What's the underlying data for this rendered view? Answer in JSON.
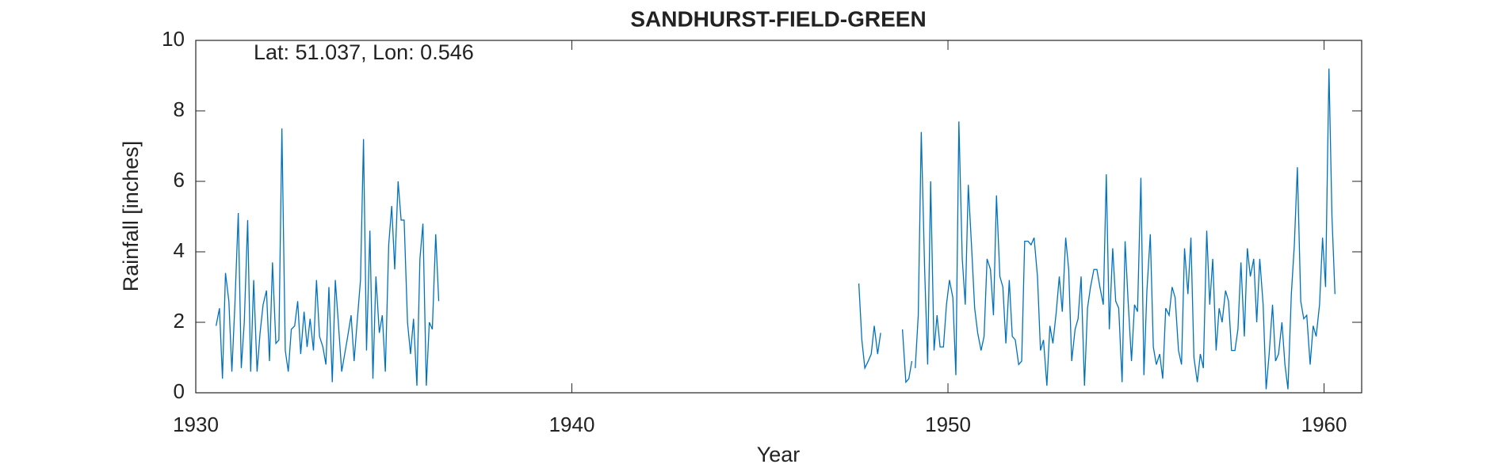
{
  "chart_data": {
    "type": "line",
    "title": "SANDHURST-FIELD-GREEN",
    "annotation": "Lat: 51.037, Lon: 0.546",
    "x_label": "Year",
    "y_label": "Rainfall [inches]",
    "color": "#0072BD",
    "xlim": [
      1930,
      1961
    ],
    "ylim": [
      0,
      10
    ],
    "xticks": [
      1930,
      1940,
      1950,
      1960
    ],
    "yticks": [
      0,
      2,
      4,
      6,
      8,
      10
    ],
    "grid": false,
    "x": [
      1930.54,
      1930.63,
      1930.71,
      1930.79,
      1930.88,
      1930.96,
      1931.04,
      1931.13,
      1931.21,
      1931.29,
      1931.38,
      1931.46,
      1931.54,
      1931.63,
      1931.71,
      1931.79,
      1931.88,
      1931.96,
      1932.04,
      1932.13,
      1932.21,
      1932.29,
      1932.38,
      1932.46,
      1932.54,
      1932.63,
      1932.71,
      1932.79,
      1932.88,
      1932.96,
      1933.04,
      1933.13,
      1933.21,
      1933.29,
      1933.38,
      1933.46,
      1933.54,
      1933.63,
      1933.71,
      1933.79,
      1933.88,
      1933.96,
      1934.04,
      1934.13,
      1934.21,
      1934.29,
      1934.38,
      1934.46,
      1934.54,
      1934.63,
      1934.71,
      1934.79,
      1934.88,
      1934.96,
      1935.04,
      1935.13,
      1935.21,
      1935.29,
      1935.38,
      1935.46,
      1935.54,
      1935.63,
      1935.71,
      1935.79,
      1935.88,
      1935.96,
      1936.04,
      1936.13,
      1936.21,
      1936.29,
      1936.38,
      1936.46,
      1942.0,
      1947.63,
      1947.71,
      1947.79,
      1947.88,
      1947.96,
      1948.04,
      1948.13,
      1948.21,
      1948.5,
      1948.79,
      1948.88,
      1948.96,
      1949.04,
      1949.08,
      1949.13,
      1949.21,
      1949.29,
      1949.38,
      1949.46,
      1949.54,
      1949.63,
      1949.71,
      1949.79,
      1949.88,
      1949.96,
      1950.04,
      1950.13,
      1950.21,
      1950.29,
      1950.38,
      1950.46,
      1950.54,
      1950.63,
      1950.71,
      1950.79,
      1950.88,
      1950.96,
      1951.04,
      1951.13,
      1951.21,
      1951.29,
      1951.38,
      1951.46,
      1951.54,
      1951.63,
      1951.71,
      1951.79,
      1951.88,
      1951.96,
      1952.04,
      1952.13,
      1952.21,
      1952.29,
      1952.38,
      1952.46,
      1952.54,
      1952.63,
      1952.71,
      1952.79,
      1952.88,
      1952.96,
      1953.04,
      1953.13,
      1953.21,
      1953.29,
      1953.38,
      1953.46,
      1953.54,
      1953.63,
      1953.71,
      1953.79,
      1953.88,
      1953.96,
      1954.04,
      1954.13,
      1954.21,
      1954.29,
      1954.38,
      1954.46,
      1954.54,
      1954.63,
      1954.71,
      1954.79,
      1954.88,
      1954.96,
      1955.04,
      1955.13,
      1955.21,
      1955.29,
      1955.38,
      1955.46,
      1955.54,
      1955.63,
      1955.71,
      1955.79,
      1955.88,
      1955.96,
      1956.04,
      1956.13,
      1956.21,
      1956.29,
      1956.38,
      1956.46,
      1956.54,
      1956.63,
      1956.71,
      1956.79,
      1956.88,
      1956.96,
      1957.04,
      1957.13,
      1957.21,
      1957.29,
      1957.38,
      1957.46,
      1957.54,
      1957.63,
      1957.71,
      1957.79,
      1957.88,
      1957.96,
      1958.04,
      1958.13,
      1958.21,
      1958.29,
      1958.38,
      1958.46,
      1958.54,
      1958.63,
      1958.71,
      1958.79,
      1958.88,
      1958.96,
      1959.04,
      1959.13,
      1959.21,
      1959.29,
      1959.38,
      1959.46,
      1959.54,
      1959.63,
      1959.71,
      1959.79,
      1959.88,
      1959.96,
      1960.04,
      1960.13,
      1960.21,
      1960.29
    ],
    "values": [
      1.9,
      2.4,
      0.4,
      3.4,
      2.6,
      0.6,
      2.5,
      5.1,
      0.7,
      2.0,
      4.9,
      0.6,
      3.2,
      0.6,
      1.7,
      2.5,
      2.9,
      0.9,
      3.7,
      1.4,
      1.5,
      7.5,
      1.2,
      0.6,
      1.8,
      1.9,
      2.6,
      1.1,
      2.3,
      1.3,
      2.1,
      1.2,
      3.2,
      1.6,
      1.3,
      0.8,
      3.0,
      0.3,
      3.2,
      2.0,
      0.6,
      1.1,
      1.6,
      2.2,
      0.9,
      2.0,
      3.2,
      7.2,
      1.2,
      4.6,
      0.4,
      3.3,
      1.7,
      2.2,
      0.6,
      4.2,
      5.3,
      3.5,
      6.0,
      4.9,
      4.9,
      2.0,
      1.1,
      2.1,
      0.2,
      3.8,
      4.8,
      0.2,
      2.0,
      1.8,
      4.5,
      2.6,
      null,
      3.1,
      1.5,
      0.7,
      0.9,
      1.1,
      1.9,
      1.1,
      1.7,
      null,
      1.8,
      0.3,
      0.4,
      0.9,
      null,
      0.7,
      2.2,
      7.4,
      3.5,
      0.8,
      6.0,
      1.2,
      2.2,
      1.3,
      1.3,
      2.5,
      3.2,
      2.7,
      0.5,
      7.7,
      3.8,
      2.5,
      5.9,
      4.1,
      2.4,
      1.7,
      1.2,
      1.6,
      3.8,
      3.5,
      2.2,
      5.6,
      3.3,
      3.0,
      1.4,
      3.2,
      1.6,
      1.5,
      0.8,
      0.9,
      4.3,
      4.3,
      4.2,
      4.4,
      3.3,
      1.2,
      1.5,
      0.2,
      1.9,
      1.4,
      2.3,
      3.3,
      2.3,
      4.4,
      3.5,
      0.9,
      1.8,
      2.1,
      3.3,
      0.2,
      2.4,
      3.0,
      3.5,
      3.5,
      3.0,
      2.5,
      6.2,
      1.8,
      4.1,
      2.6,
      2.4,
      0.3,
      4.3,
      2.6,
      0.9,
      2.5,
      2.3,
      6.1,
      0.5,
      2.9,
      4.5,
      1.3,
      0.8,
      1.1,
      0.4,
      2.4,
      2.2,
      3.0,
      2.7,
      1.2,
      0.8,
      4.1,
      2.8,
      4.4,
      1.0,
      0.3,
      1.1,
      0.7,
      4.6,
      2.5,
      3.8,
      1.2,
      2.4,
      2.0,
      2.9,
      2.6,
      1.2,
      1.2,
      1.8,
      3.7,
      1.6,
      4.1,
      3.3,
      3.8,
      2.0,
      3.8,
      2.5,
      0.1,
      1.1,
      2.5,
      0.9,
      1.1,
      2.0,
      0.8,
      0.1,
      2.8,
      4.2,
      6.4,
      2.6,
      2.1,
      2.2,
      0.8,
      1.9,
      1.6,
      2.5,
      4.4,
      3.0,
      9.2,
      5.0,
      2.8
    ]
  }
}
